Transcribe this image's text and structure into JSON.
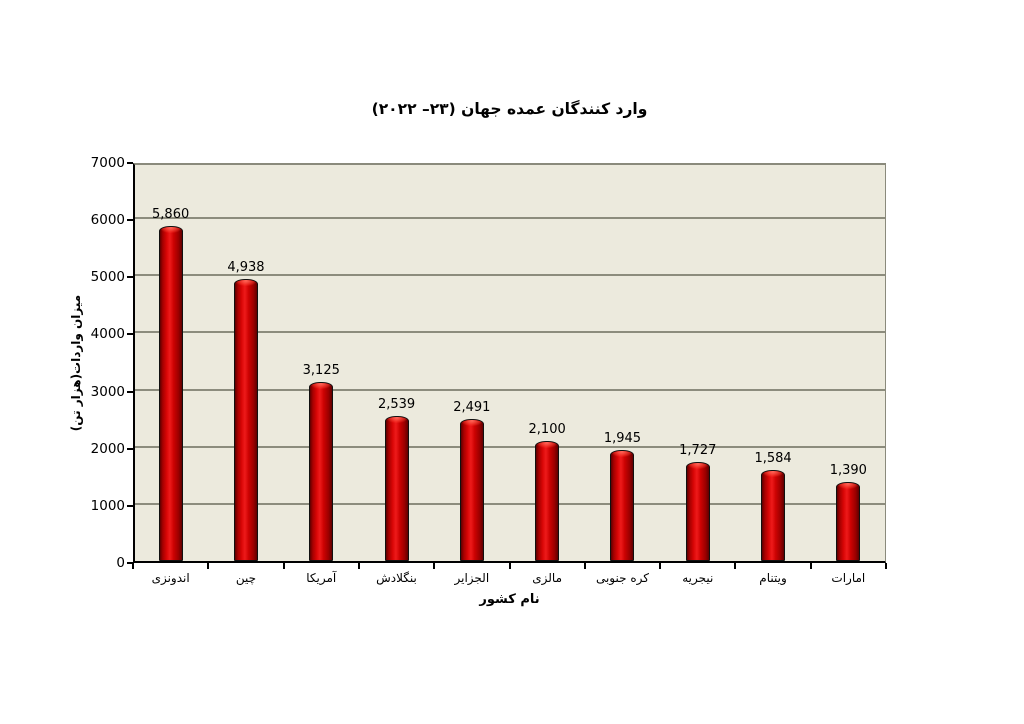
{
  "page": {
    "background": "#ffffff"
  },
  "chart_data": {
    "type": "bar",
    "title": "وارد کنندگان عمده جهان (۲۳– ۲۰۲۲)",
    "xlabel": "نام کشور",
    "ylabel": "میزان واردات(هزار تن)",
    "categories": [
      "اندونزی",
      "چین",
      "آمریکا",
      "بنگلادش",
      "الجزایر",
      "مالزی",
      "کره جنوبی",
      "نیجریه",
      "ویتنام",
      "امارات"
    ],
    "values": [
      5860,
      4938,
      3125,
      2539,
      2491,
      2100,
      1945,
      1727,
      1584,
      1390
    ],
    "value_labels": [
      "5,860",
      "4,938",
      "3,125",
      "2,539",
      "2,491",
      "2,100",
      "1,945",
      "1,727",
      "1,584",
      "1,390"
    ],
    "ylim": [
      0,
      7000
    ],
    "yticks": [
      0,
      1000,
      2000,
      3000,
      4000,
      5000,
      6000,
      7000
    ],
    "grid": true,
    "legend_position": "none",
    "bar_color": "#cc0000",
    "bar_border_color": "#000000",
    "plot_background": "#eceadd",
    "gridline_color": "#8c8c7d"
  }
}
